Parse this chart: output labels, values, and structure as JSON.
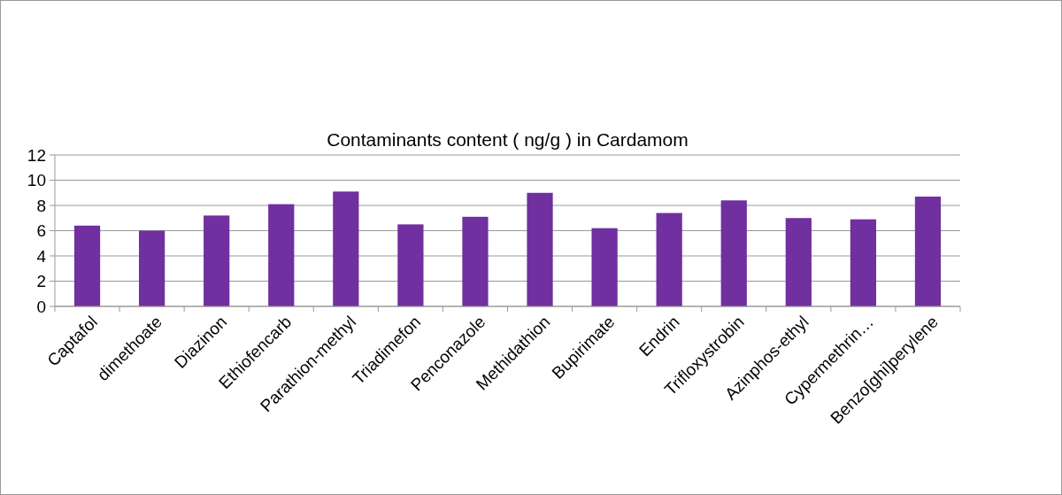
{
  "chart_data": {
    "type": "bar",
    "title": "Contaminants content ( ng/g ) in Cardamom",
    "categories": [
      "Captafol",
      "dimethoate",
      "Diazinon",
      "Ethiofencarb",
      "Parathion-methyl",
      "Triadimefon",
      "Penconazole",
      "Methidathion",
      "Bupirimate",
      "Endrin",
      "Trifloxystrobin",
      "Azinphos-ethyl",
      "Cypermethrin…",
      "Benzo[ghi]perylene"
    ],
    "values": [
      6.4,
      6.0,
      7.2,
      8.1,
      9.1,
      6.5,
      7.1,
      9.0,
      6.2,
      7.4,
      8.4,
      7.0,
      6.9,
      8.7
    ],
    "color": "#7030a0",
    "ylim": [
      0,
      12
    ],
    "yticks": [
      0,
      2,
      4,
      6,
      8,
      10,
      12
    ],
    "grid": "y"
  }
}
